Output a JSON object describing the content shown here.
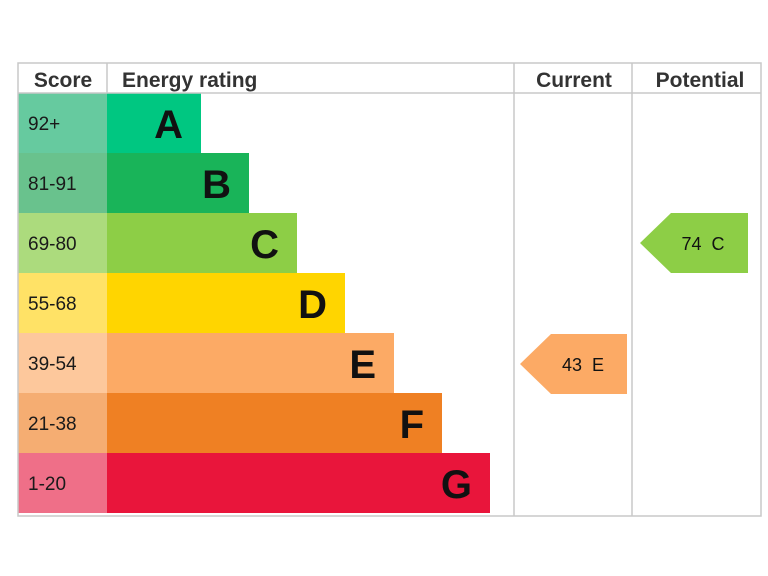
{
  "headers": {
    "score": "Score",
    "rating": "Energy rating",
    "current": "Current",
    "potential": "Potential"
  },
  "chart_data": {
    "type": "table",
    "bands": [
      {
        "score": "92+",
        "letter": "A",
        "color": "#00c781",
        "score_color": "#66ca9f"
      },
      {
        "score": "81-91",
        "letter": "B",
        "color": "#19b459",
        "score_color": "#69c28d"
      },
      {
        "score": "69-80",
        "letter": "C",
        "color": "#8dce46",
        "score_color": "#acdb7d"
      },
      {
        "score": "55-68",
        "letter": "D",
        "color": "#ffd500",
        "score_color": "#ffe266"
      },
      {
        "score": "39-54",
        "letter": "E",
        "color": "#fcaa65",
        "score_color": "#fdc89c"
      },
      {
        "score": "21-38",
        "letter": "F",
        "color": "#ef8023",
        "score_color": "#f5ad72"
      },
      {
        "score": "1-20",
        "letter": "G",
        "color": "#e9153b",
        "score_color": "#ef6f88"
      }
    ],
    "current": {
      "value": 43,
      "letter": "E",
      "label": "43  E",
      "color": "#fcaa65"
    },
    "potential": {
      "value": 74,
      "letter": "C",
      "label": "74  C",
      "color": "#8dce46"
    }
  }
}
